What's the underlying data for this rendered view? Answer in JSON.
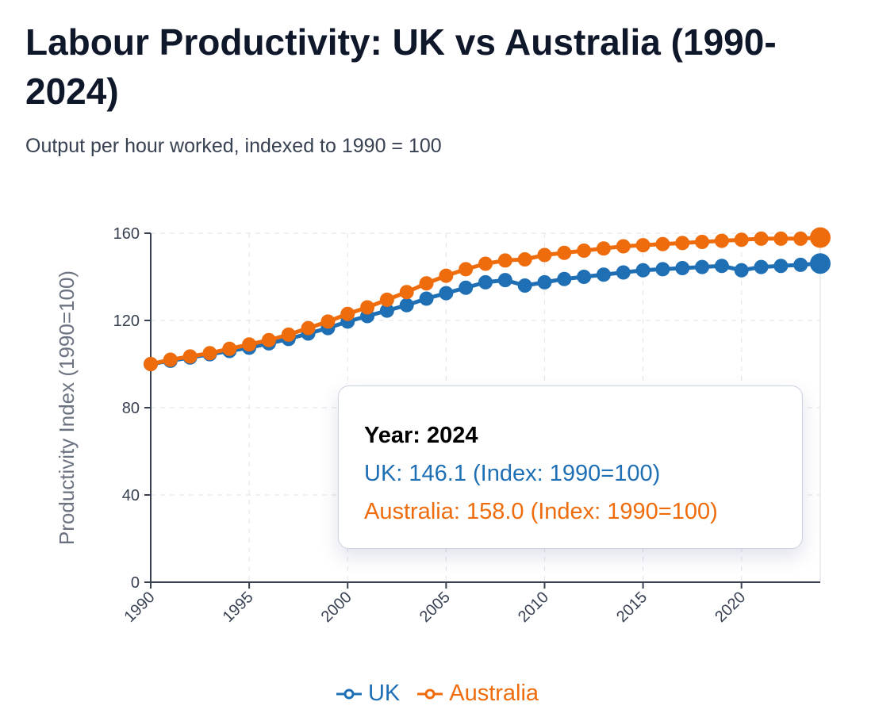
{
  "title": "Labour Productivity: UK vs Australia (1990-2024)",
  "subtitle": "Output per hour worked, indexed to 1990 = 100",
  "colors": {
    "uk": "#1f6fb5",
    "australia": "#ef6c0c",
    "axis": "#374151",
    "grid": "#e5e7eb"
  },
  "chart_data": {
    "type": "line",
    "ylabel": "Productivity Index (1990=100)",
    "xlabel": "",
    "ylim": [
      0,
      160
    ],
    "xlim": [
      1990,
      2024
    ],
    "yticks": [
      0,
      40,
      80,
      120,
      160
    ],
    "xticks": [
      1990,
      1995,
      2000,
      2005,
      2010,
      2015,
      2020
    ],
    "grid": true,
    "x": [
      1990,
      1991,
      1992,
      1993,
      1994,
      1995,
      1996,
      1997,
      1998,
      1999,
      2000,
      2001,
      2002,
      2003,
      2004,
      2005,
      2006,
      2007,
      2008,
      2009,
      2010,
      2011,
      2012,
      2013,
      2014,
      2015,
      2016,
      2017,
      2018,
      2019,
      2020,
      2021,
      2022,
      2023,
      2024
    ],
    "series": [
      {
        "name": "UK",
        "values": [
          100,
          101.5,
          103,
          104.5,
          106,
          107.5,
          109.5,
          111.5,
          114,
          116.5,
          119.5,
          122,
          124.5,
          127,
          130,
          132.5,
          135,
          137.5,
          138.5,
          136,
          137.5,
          139,
          140,
          141,
          142,
          143,
          143.5,
          144,
          144.5,
          145,
          143,
          144.5,
          145,
          145.5,
          146.1
        ]
      },
      {
        "name": "Australia",
        "values": [
          100,
          102,
          103.5,
          105,
          107,
          109,
          111,
          113.5,
          116.5,
          119.5,
          123,
          126,
          129.5,
          133,
          137,
          140.5,
          143.5,
          146,
          147.5,
          148,
          150,
          151,
          152,
          153,
          154,
          154.5,
          155,
          155.5,
          156,
          156.5,
          157,
          157.5,
          157.5,
          157.5,
          158.0
        ]
      }
    ],
    "legend": [
      "UK",
      "Australia"
    ],
    "legend_position": "bottom-center"
  },
  "tooltip": {
    "year": "Year: 2024",
    "uk": "UK: 146.1 (Index: 1990=100)",
    "australia": "Australia: 158.0 (Index: 1990=100)"
  },
  "legend": {
    "uk": "UK",
    "australia": "Australia"
  }
}
